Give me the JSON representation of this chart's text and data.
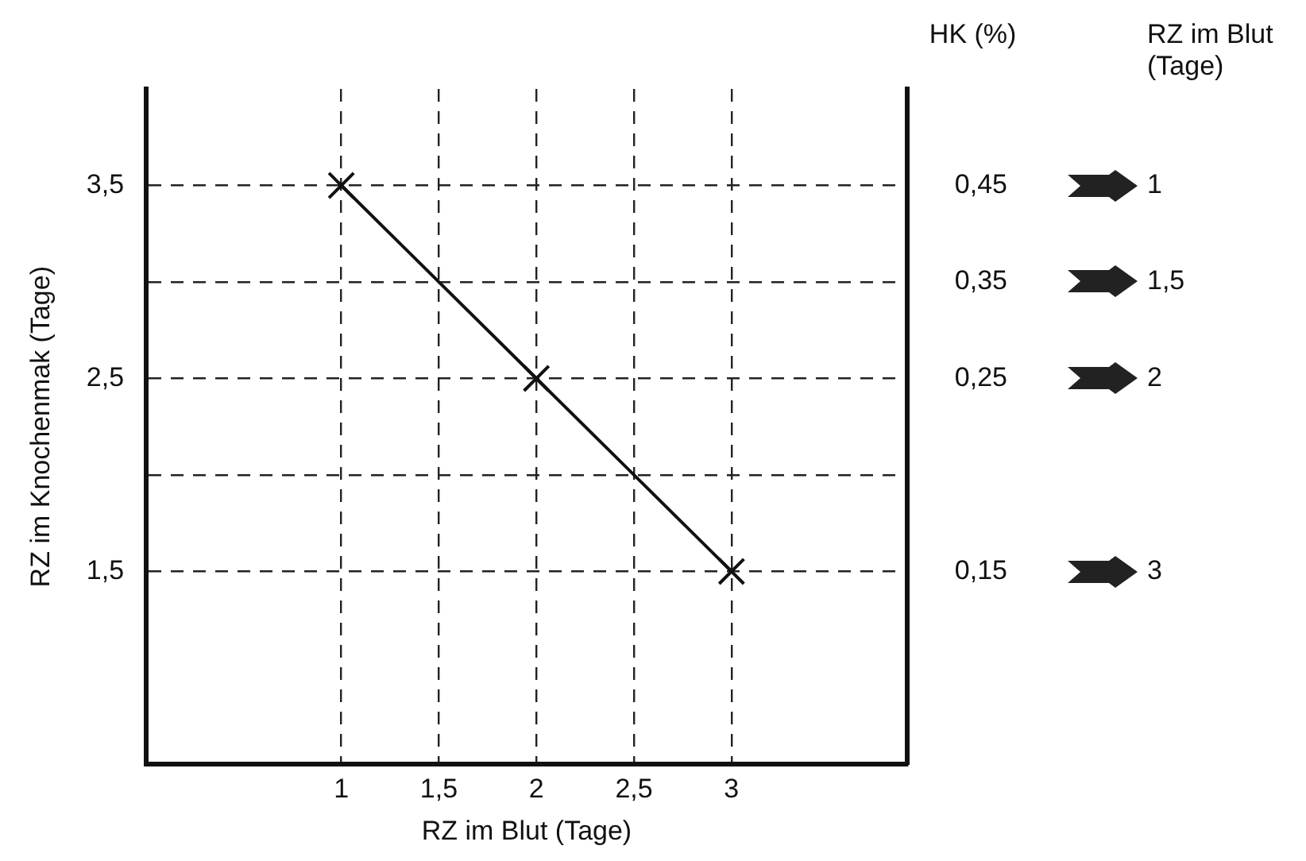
{
  "chart_data": {
    "type": "line",
    "xlabel": "RZ im Blut (Tage)",
    "ylabel": "RZ im Knochenmak (Tage)",
    "y2label": "HK (%)",
    "y3label": "RZ im Blut (Tage)",
    "series": [
      {
        "color": "#111111",
        "x": [
          1,
          2,
          3
        ],
        "values": [
          3.5,
          2.5,
          1.5
        ]
      }
    ],
    "xlim": [
      0,
      3.9
    ],
    "xticks": [
      1,
      {
        "value": 1.5,
        "label": "1,5"
      },
      2,
      {
        "value": 2.5,
        "label": "2,5"
      },
      3
    ],
    "ylim": [
      0.5,
      4.0
    ],
    "yticks": [
      {
        "value": 1.5,
        "label": "1,5"
      },
      {
        "value": 2,
        "label": null
      },
      {
        "value": 2.5,
        "label": "2,5"
      },
      {
        "value": 3,
        "label": null
      },
      {
        "value": 3.5,
        "label": "3,5"
      }
    ],
    "y2_categories": [
      null,
      "0,45",
      "0,35",
      "0,25",
      null,
      "0,15",
      null,
      null
    ],
    "annotations": [
      "1",
      "1,5",
      "2",
      "3"
    ],
    "grid": true,
    "legend": false,
    "marker": "cross",
    "line_style": "solid"
  }
}
